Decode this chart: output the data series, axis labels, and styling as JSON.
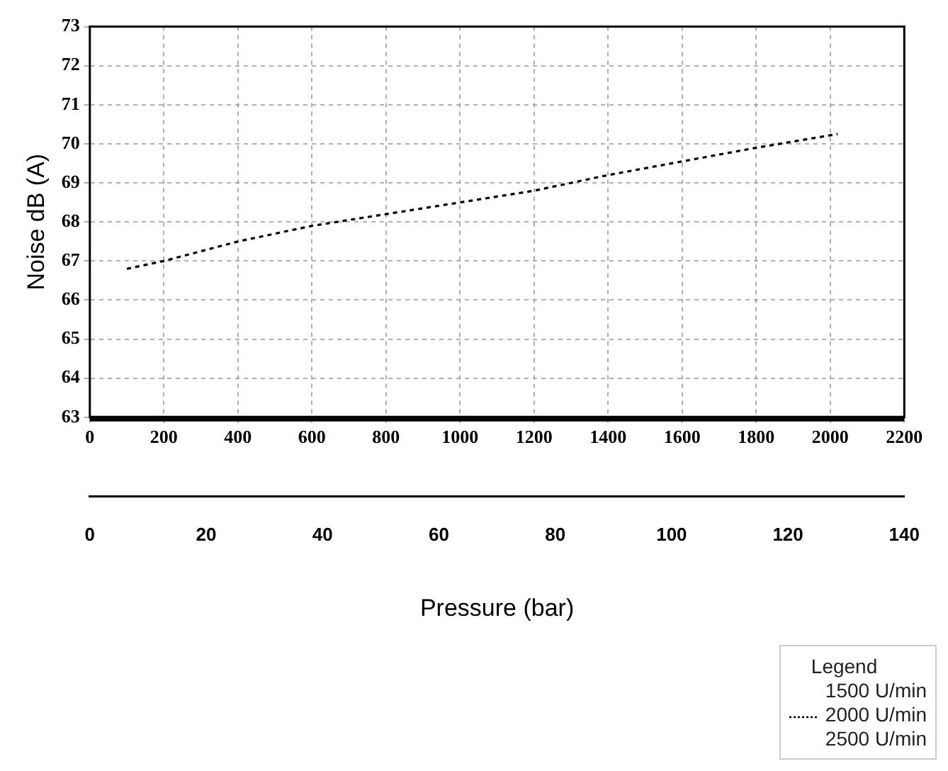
{
  "chart_data": {
    "type": "line",
    "ylabel": "Noise dB (A)",
    "x2label": "Pressure (bar)",
    "legend_title": "Legend",
    "x": [
      100,
      200,
      400,
      600,
      800,
      1000,
      1200,
      1400,
      1600,
      1800,
      2020
    ],
    "series": [
      {
        "name": "2000 U/min",
        "color": "#000000",
        "values": [
          66.8,
          67.0,
          67.5,
          67.9,
          68.2,
          68.5,
          68.8,
          69.2,
          69.55,
          69.9,
          70.25
        ]
      }
    ],
    "xlim": [
      0,
      2200
    ],
    "xticks": [
      0,
      200,
      400,
      600,
      800,
      1000,
      1200,
      1400,
      1600,
      1800,
      2000,
      2200
    ],
    "x2lim": [
      0,
      140
    ],
    "x2ticks": [
      0,
      20,
      40,
      60,
      80,
      100,
      120,
      140
    ],
    "ylim": [
      63,
      73
    ],
    "yticks": [
      63,
      64,
      65,
      66,
      67,
      68,
      69,
      70,
      71,
      72,
      73
    ],
    "grid": true,
    "legend": "bottom right",
    "marker": "none",
    "line_style": "dotted",
    "annotations": [
      "1500 U/min",
      "2500 U/min"
    ]
  }
}
